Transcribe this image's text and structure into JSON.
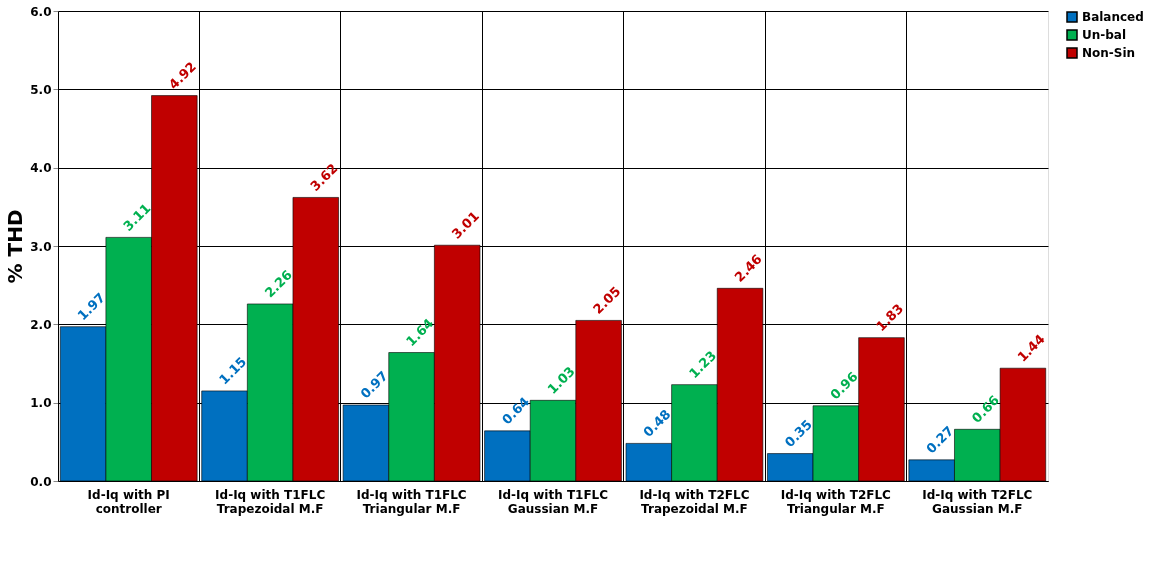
{
  "chart_data": {
    "type": "bar",
    "ylabel": "% THD",
    "categories": [
      "Id-Iq with PI controller",
      "Id-Iq with T1FLC Trapezoidal M.F",
      "Id-Iq with T1FLC Triangular M.F",
      "Id-Iq with T1FLC Gaussian M.F",
      "Id-Iq with T2FLC Trapezoidal M.F",
      "Id-Iq with T2FLC Triangular M.F",
      "Id-Iq with T2FLC Gaussian M.F"
    ],
    "series": [
      {
        "name": "Balanced",
        "color": "#0070c0",
        "values": [
          1.97,
          1.15,
          0.97,
          0.64,
          0.48,
          0.35,
          0.27
        ]
      },
      {
        "name": "Un-bal",
        "color": "#00b050",
        "values": [
          3.11,
          2.26,
          1.64,
          1.03,
          1.23,
          0.96,
          0.66
        ]
      },
      {
        "name": "Non-Sin",
        "color": "#c00000",
        "values": [
          4.92,
          3.62,
          3.01,
          2.05,
          2.46,
          1.83,
          1.44
        ]
      }
    ],
    "ylim": [
      0,
      6
    ],
    "yticks": [
      {
        "value": 0,
        "label": "0.0"
      },
      {
        "value": 1,
        "label": "1.0"
      },
      {
        "value": 2,
        "label": "2.0"
      },
      {
        "value": 3,
        "label": "3.0"
      },
      {
        "value": 4,
        "label": "4.0"
      },
      {
        "value": 5,
        "label": "5.0"
      },
      {
        "value": 6,
        "label": "6.0"
      }
    ],
    "grid": true,
    "legend": "right",
    "data_labels": true
  }
}
